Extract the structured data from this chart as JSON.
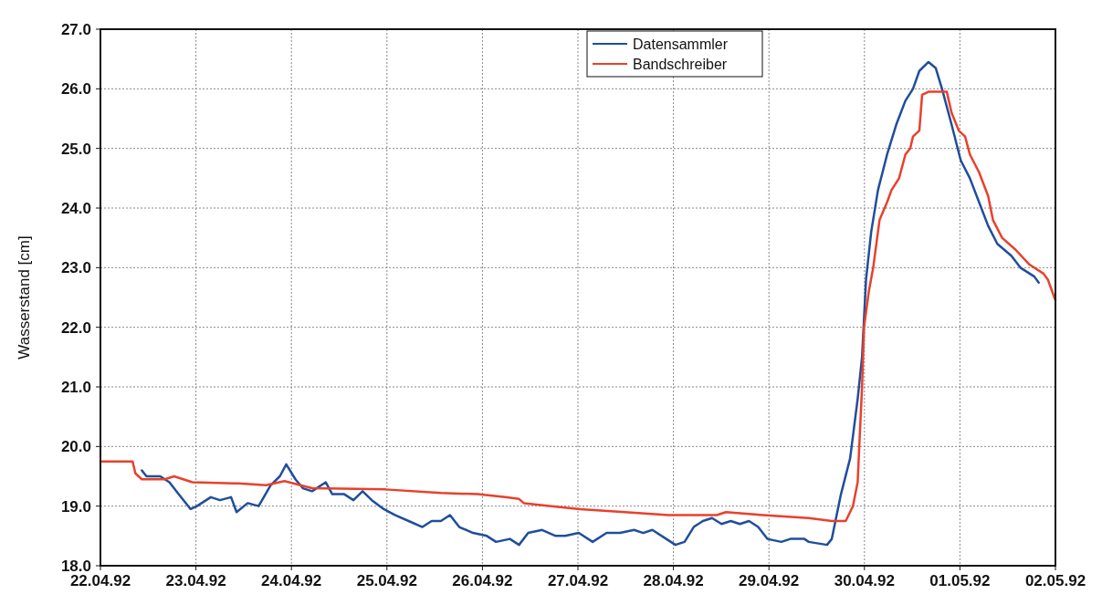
{
  "chart_data": {
    "type": "line",
    "ylabel": "Wasserstand [cm]",
    "legend": "top",
    "grid": true,
    "line_style": "solid",
    "xlim": [
      "1992-04-22",
      "1992-05-02"
    ],
    "xticks": [
      {
        "value": "1992-04-22",
        "label": "22.04.92"
      },
      {
        "value": "1992-04-23",
        "label": "23.04.92"
      },
      {
        "value": "1992-04-24",
        "label": "24.04.92"
      },
      {
        "value": "1992-04-25",
        "label": "25.04.92"
      },
      {
        "value": "1992-04-26",
        "label": "26.04.92"
      },
      {
        "value": "1992-04-27",
        "label": "27.04.92"
      },
      {
        "value": "1992-04-28",
        "label": "28.04.92"
      },
      {
        "value": "1992-04-29",
        "label": "29.04.92"
      },
      {
        "value": "1992-04-30",
        "label": "30.04.92"
      },
      {
        "value": "1992-05-01",
        "label": "01.05.92"
      },
      {
        "value": "1992-05-02",
        "label": "02.05.92"
      }
    ],
    "ylim": [
      18,
      27
    ],
    "yticks": [
      {
        "value": 18,
        "label": "18.0"
      },
      {
        "value": 19,
        "label": "19.0"
      },
      {
        "value": 20,
        "label": "20.0"
      },
      {
        "value": 21,
        "label": "21.0"
      },
      {
        "value": 22,
        "label": "22.0"
      },
      {
        "value": 23,
        "label": "23.0"
      },
      {
        "value": 24,
        "label": "24.0"
      },
      {
        "value": 25,
        "label": "25.0"
      },
      {
        "value": 26,
        "label": "26.0"
      },
      {
        "value": 27,
        "label": "27.0"
      }
    ],
    "series": [
      {
        "name": "Datensammler",
        "color": "#1f4e9c",
        "x": [
          "1992-04-22T10:24",
          "1992-04-22T11:34",
          "1992-04-22T15:02",
          "1992-04-22T17:20",
          "1992-04-22T19:39",
          "1992-04-22T22:40",
          "1992-04-23T00:17",
          "1992-04-23T03:44",
          "1992-04-23T06:03",
          "1992-04-23T08:50",
          "1992-04-23T10:13",
          "1992-04-23T13:00",
          "1992-04-23T15:46",
          "1992-04-23T18:46",
          "1992-04-23T21:05",
          "1992-04-23T22:42",
          "1992-04-24T01:00",
          "1992-04-24T02:52",
          "1992-04-24T05:11",
          "1992-04-24T08:38",
          "1992-04-24T10:16",
          "1992-04-24T13:16",
          "1992-04-24T15:35",
          "1992-04-24T17:53",
          "1992-04-24T20:12",
          "1992-04-24T23:12",
          "1992-04-25T01:59",
          "1992-04-25T05:27",
          "1992-04-25T08:55",
          "1992-04-25T11:14",
          "1992-04-25T13:33",
          "1992-04-25T15:51",
          "1992-04-25T18:10",
          "1992-04-25T21:38",
          "1992-04-26T01:06",
          "1992-04-26T03:25",
          "1992-04-26T06:53",
          "1992-04-26T09:12",
          "1992-04-26T11:30",
          "1992-04-26T15:00",
          "1992-04-26T18:24",
          "1992-04-26T20:48",
          "1992-04-27T00:12",
          "1992-04-27T03:42",
          "1992-04-27T07:12",
          "1992-04-27T10:36",
          "1992-04-27T14:06",
          "1992-04-27T16:24",
          "1992-04-27T18:42",
          "1992-04-27T22:12",
          "1992-04-28T00:30",
          "1992-04-28T02:48",
          "1992-04-28T05:06",
          "1992-04-28T07:24",
          "1992-04-28T09:42",
          "1992-04-28T12:06",
          "1992-04-28T14:24",
          "1992-04-28T16:42",
          "1992-04-28T19:00",
          "1992-04-28T21:18",
          "1992-04-28T23:36",
          "1992-04-29T03:06",
          "1992-04-29T05:24",
          "1992-04-29T08:54",
          "1992-04-29T10:00",
          "1992-04-29T14:36",
          "1992-04-29T15:48",
          "1992-04-29T18:06",
          "1992-04-29T20:24",
          "1992-04-29T22:18",
          "1992-04-29T23:24",
          "1992-04-30T00:24",
          "1992-04-30T01:42",
          "1992-04-30T03:24",
          "1992-04-30T05:42",
          "1992-04-30T08:00",
          "1992-04-30T10:18",
          "1992-04-30T12:12",
          "1992-04-30T13:48",
          "1992-04-30T16:06",
          "1992-04-30T17:54",
          "1992-04-30T19:30",
          "1992-04-30T21:54",
          "1992-05-01T00:12",
          "1992-05-01T02:30",
          "1992-05-01T04:48",
          "1992-05-01T07:06",
          "1992-05-01T09:24",
          "1992-05-01T12:54",
          "1992-05-01T15:12",
          "1992-05-01T18:42",
          "1992-05-01T19:48"
        ],
        "values": [
          19.6,
          19.5,
          19.5,
          19.4,
          19.2,
          18.95,
          19.0,
          19.15,
          19.1,
          19.15,
          18.9,
          19.05,
          19.0,
          19.35,
          19.5,
          19.7,
          19.45,
          19.3,
          19.25,
          19.4,
          19.2,
          19.2,
          19.1,
          19.25,
          19.1,
          18.95,
          18.85,
          18.75,
          18.65,
          18.75,
          18.75,
          18.85,
          18.65,
          18.55,
          18.5,
          18.4,
          18.45,
          18.35,
          18.55,
          18.6,
          18.5,
          18.5,
          18.55,
          18.4,
          18.55,
          18.55,
          18.6,
          18.55,
          18.6,
          18.45,
          18.35,
          18.4,
          18.65,
          18.75,
          18.8,
          18.7,
          18.75,
          18.7,
          18.75,
          18.65,
          18.45,
          18.4,
          18.45,
          18.45,
          18.4,
          18.35,
          18.45,
          19.2,
          19.8,
          20.8,
          21.5,
          22.8,
          23.6,
          24.3,
          24.9,
          25.4,
          25.8,
          26.0,
          26.3,
          26.45,
          26.35,
          26.0,
          25.4,
          24.8,
          24.5,
          24.1,
          23.7,
          23.4,
          23.2,
          23.0,
          22.85,
          22.75
        ]
      },
      {
        "name": "Bandschreiber",
        "color": "#e8412c",
        "x": [
          "1992-04-22T00:00",
          "1992-04-22T08:05",
          "1992-04-22T08:47",
          "1992-04-22T10:24",
          "1992-04-22T16:11",
          "1992-04-22T18:30",
          "1992-04-22T23:07",
          "1992-04-23T10:41",
          "1992-04-23T17:37",
          "1992-04-23T22:14",
          "1992-04-24T05:11",
          "1992-04-24T23:40",
          "1992-04-25T13:33",
          "1992-04-25T22:47",
          "1992-04-26T05:42",
          "1992-04-26T09:12",
          "1992-04-26T10:24",
          "1992-04-26T17:18",
          "1992-04-27T00:30",
          "1992-04-27T11:48",
          "1992-04-27T22:42",
          "1992-04-28T10:54",
          "1992-04-28T13:12",
          "1992-04-28T22:30",
          "1992-04-29T10:00",
          "1992-04-29T15:48",
          "1992-04-29T19:18",
          "1992-04-29T21:06",
          "1992-04-29T22:18",
          "1992-04-29T22:42",
          "1992-04-29T23:24",
          "1992-04-29T23:54",
          "1992-04-30T01:06",
          "1992-04-30T02:12",
          "1992-04-30T03:48",
          "1992-04-30T05:42",
          "1992-04-30T06:48",
          "1992-04-30T08:42",
          "1992-04-30T10:18",
          "1992-04-30T11:30",
          "1992-04-30T12:12",
          "1992-04-30T13:48",
          "1992-04-30T14:30",
          "1992-04-30T16:06",
          "1992-04-30T20:42",
          "1992-04-30T21:54",
          "1992-04-30T23:42",
          "1992-05-01T01:18",
          "1992-05-01T02:30",
          "1992-05-01T04:48",
          "1992-05-01T07:06",
          "1992-05-01T08:18",
          "1992-05-01T10:36",
          "1992-05-01T14:00",
          "1992-05-01T17:30",
          "1992-05-01T21:00",
          "1992-05-01T22:06",
          "1992-05-02T00:00"
        ],
        "values": [
          19.75,
          19.75,
          19.55,
          19.45,
          19.45,
          19.5,
          19.4,
          19.38,
          19.35,
          19.42,
          19.3,
          19.28,
          19.22,
          19.2,
          19.15,
          19.12,
          19.05,
          19.0,
          18.95,
          18.9,
          18.85,
          18.85,
          18.9,
          18.85,
          18.8,
          18.75,
          18.75,
          19.0,
          19.4,
          20.0,
          21.0,
          22.0,
          22.6,
          23.0,
          23.8,
          24.1,
          24.3,
          24.5,
          24.9,
          25.0,
          25.2,
          25.3,
          25.9,
          25.95,
          25.95,
          25.6,
          25.3,
          25.2,
          24.9,
          24.6,
          24.2,
          23.8,
          23.5,
          23.3,
          23.05,
          22.9,
          22.8,
          22.45
        ]
      }
    ]
  }
}
